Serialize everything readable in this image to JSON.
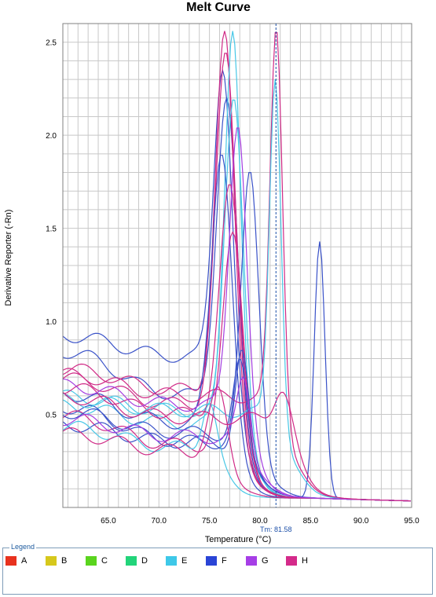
{
  "chart_data": {
    "type": "line",
    "title": "Melt Curve",
    "xlabel": "Temperature (°C)",
    "ylabel": "Derivative Reporter (-Rn)",
    "xlim": [
      60.5,
      95.0
    ],
    "ylim": [
      0.0,
      2.6
    ],
    "xticks": [
      65.0,
      70.0,
      75.0,
      80.0,
      85.0,
      90.0,
      95.0
    ],
    "xtick_labels": [
      "65.0",
      "70.0",
      "75.0",
      "80.0",
      "85.0",
      "90.0",
      "95.0"
    ],
    "yticks": [
      0.5,
      1.0,
      1.5,
      2.0,
      2.5
    ],
    "ytick_labels": [
      "0.5",
      "1.0",
      "1.5",
      "2.0",
      "2.5"
    ],
    "grid": true,
    "tm_marker": {
      "x": 81.58,
      "label": "Tm: 81.58"
    },
    "series": [
      {
        "color": "#3a52c8",
        "base": 0.93,
        "dip": 0.81,
        "peakx": 76.3,
        "peak": 2.35,
        "w": 1.3,
        "peak2x": 85.9,
        "peak2": 1.38,
        "w2": 0.75
      },
      {
        "color": "#3a52c8",
        "base": 0.85,
        "dip": 0.6,
        "peakx": 76.7,
        "peak": 2.2,
        "w": 1.4
      },
      {
        "color": "#d02a86",
        "base": 0.75,
        "dip": 0.63,
        "peakx": 76.5,
        "peak": 2.56,
        "w": 1.3
      },
      {
        "color": "#d02a86",
        "base": 0.7,
        "dip": 0.55,
        "peakx": 76.6,
        "peak": 2.45,
        "w": 1.4
      },
      {
        "color": "#48c7e6",
        "base": 0.6,
        "dip": 0.52,
        "peakx": 77.3,
        "peak": 2.56,
        "w": 1.1
      },
      {
        "color": "#48c7e6",
        "base": 0.55,
        "dip": 0.45,
        "peakx": 77.4,
        "peak": 2.2,
        "w": 1.3
      },
      {
        "color": "#3a52c8",
        "base": 0.62,
        "dip": 0.45,
        "peakx": 76.2,
        "peak": 1.9,
        "w": 1.4
      },
      {
        "color": "#3a52c8",
        "base": 0.55,
        "dip": 0.35,
        "peakx": 79.0,
        "peak": 1.81,
        "w": 1.2
      },
      {
        "color": "#d02a86",
        "base": 0.65,
        "dip": 0.5,
        "peakx": 77.0,
        "peak": 1.74,
        "w": 1.4
      },
      {
        "color": "#d02a86",
        "base": 0.5,
        "dip": 0.33,
        "peakx": 77.3,
        "peak": 1.48,
        "w": 1.4
      },
      {
        "color": "#d02a86",
        "base": 0.72,
        "dip": 0.6,
        "peakx": 81.6,
        "peak": 2.58,
        "w": 0.85
      },
      {
        "color": "#48c7e6",
        "base": 0.58,
        "dip": 0.52,
        "peakx": 81.5,
        "peak": 2.3,
        "w": 0.8
      },
      {
        "color": "#3a52c8",
        "base": 0.45,
        "dip": 0.35,
        "peakx": 78.2,
        "peak": 0.85,
        "w": 0.9
      },
      {
        "color": "#3a52c8",
        "base": 0.52,
        "dip": 0.4,
        "peakx": 78.0,
        "peak": 0.8,
        "w": 0.9
      },
      {
        "color": "#a43ee0",
        "base": 0.48,
        "dip": 0.38,
        "peakx": 78.3,
        "peak": 0.7,
        "w": 0.9
      },
      {
        "color": "#48c7e6",
        "base": 0.44,
        "dip": 0.32,
        "peakx": 75.0,
        "peak": 0.56,
        "w": 1.0
      },
      {
        "color": "#d02a86",
        "base": 0.4,
        "dip": 0.3,
        "peakx": 75.8,
        "peak": 0.65,
        "w": 1.2
      },
      {
        "color": "#a43ee0",
        "base": 0.66,
        "dip": 0.55,
        "peakx": 77.8,
        "peak": 2.05,
        "w": 1.2
      },
      {
        "color": "#d02a86",
        "base": 0.6,
        "dip": 0.48,
        "peakx": 82.2,
        "peak": 0.62,
        "w": 1.2
      }
    ]
  },
  "legend": {
    "title": "Legend",
    "items": [
      {
        "label": "A",
        "color": "#e8321e"
      },
      {
        "label": "B",
        "color": "#d6c81c"
      },
      {
        "label": "C",
        "color": "#5ad41e"
      },
      {
        "label": "D",
        "color": "#22d47a"
      },
      {
        "label": "E",
        "color": "#3ec8e8"
      },
      {
        "label": "F",
        "color": "#2a44d6"
      },
      {
        "label": "G",
        "color": "#a63ee6"
      },
      {
        "label": "H",
        "color": "#d42a8a"
      }
    ]
  }
}
